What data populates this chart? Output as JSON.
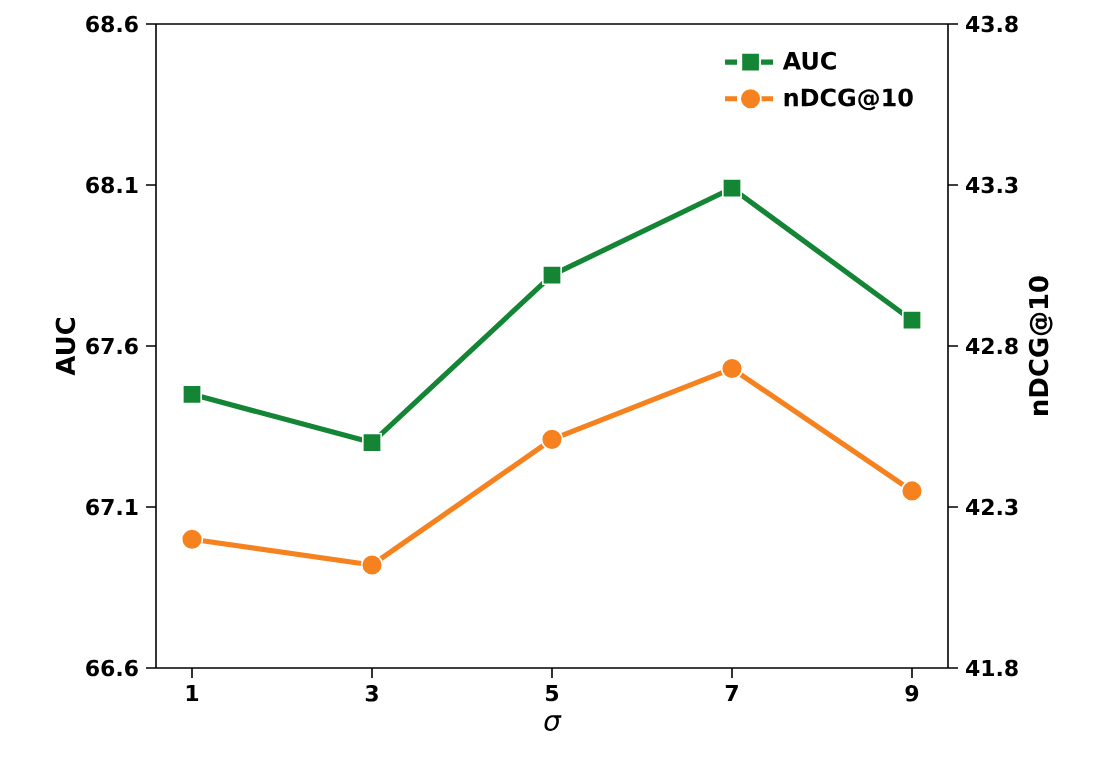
{
  "chart_data": {
    "type": "line",
    "xlabel": "σ",
    "ylabel": "AUC",
    "y2label": "nDCG@10",
    "x": [
      1,
      3,
      5,
      7,
      9
    ],
    "series": [
      {
        "name": "AUC",
        "color": "#138535",
        "marker": "square",
        "values": [
          67.45,
          67.3,
          67.82,
          68.09,
          67.68
        ]
      },
      {
        "name": "nDCG@10",
        "color": "#f5821f",
        "marker": "circle",
        "axis": "y2",
        "values": [
          42.2,
          42.12,
          42.51,
          42.73,
          42.35
        ]
      }
    ],
    "xlim": [
      0.6,
      9.4
    ],
    "xticks": [
      1,
      3,
      5,
      7,
      9
    ],
    "ylim": [
      66.6,
      68.6
    ],
    "yticks": [
      66.6,
      67.1,
      67.6,
      68.1,
      68.6
    ],
    "y2lim": [
      41.8,
      43.8
    ],
    "y2ticks": [
      41.8,
      42.3,
      42.8,
      43.3,
      43.8
    ],
    "legend": "top right",
    "grid": false
  }
}
